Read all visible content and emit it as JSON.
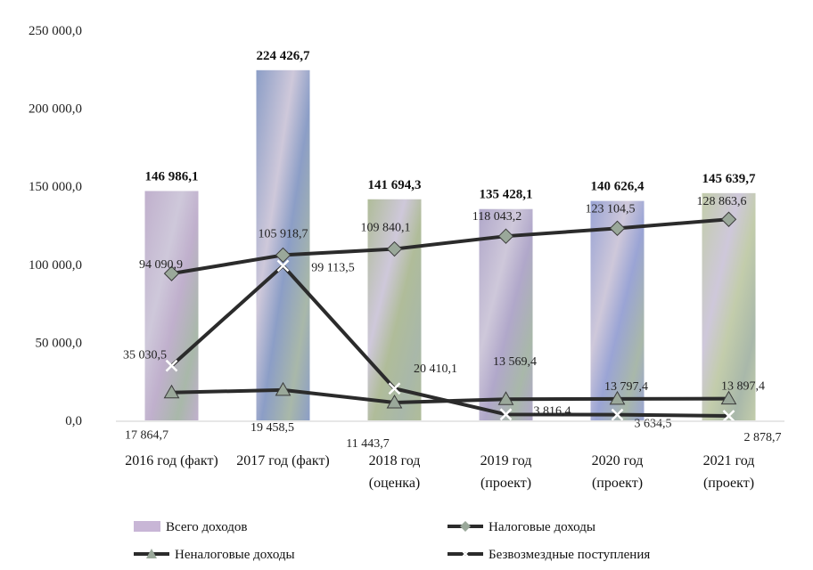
{
  "chart_data": {
    "type": "bar",
    "categories": [
      [
        "2016 год (факт)"
      ],
      [
        "2017 год (факт)"
      ],
      [
        "2018 год",
        "(оценка)"
      ],
      [
        "2019 год",
        "(проект)"
      ],
      [
        "2020 год",
        "(проект)"
      ],
      [
        "2021 год",
        "(проект)"
      ]
    ],
    "ylim": [
      0,
      250000
    ],
    "yticks": [
      0,
      50000,
      100000,
      150000,
      200000,
      250000
    ],
    "ytick_labels": [
      "0,0",
      "50 000,0",
      "100 000,0",
      "150 000,0",
      "200 000,0",
      "250 000,0"
    ],
    "legend_position": "bottom",
    "series": [
      {
        "name": "Всего доходов",
        "kind": "bar",
        "values": [
          146986.1,
          224426.7,
          141694.3,
          135428.1,
          140626.4,
          145639.7
        ],
        "labels": [
          "146 986,1",
          "224 426,7",
          "141 694,3",
          "135 428,1",
          "140 626,4",
          "145 639,7"
        ]
      },
      {
        "name": "Налоговые доходы",
        "kind": "line",
        "marker": "diamond",
        "values": [
          94090.9,
          105918.7,
          109840.1,
          118043.2,
          123104.5,
          128863.6
        ],
        "labels": [
          "94 090,9",
          "105 918,7",
          "109 840,1",
          "118 043,2",
          "123 104,5",
          "128 863,6"
        ]
      },
      {
        "name": "Неналоговые доходы",
        "kind": "line",
        "marker": "triangle",
        "values": [
          17864.7,
          19458.5,
          11443.7,
          13569.4,
          13797.4,
          13897.4
        ],
        "labels": [
          "17 864,7",
          "19 458,5",
          "11 443,7",
          "13 569,4",
          "13 797,4",
          "13 897,4"
        ]
      },
      {
        "name": "Безвозмездные поступления",
        "kind": "line",
        "marker": "cross",
        "values": [
          35030.5,
          99113.5,
          20410.1,
          3816.4,
          3634.5,
          2878.7
        ],
        "labels": [
          "35 030,5",
          "99 113,5",
          "20 410,1",
          "3 816,4",
          "3 634,5",
          "2 878,7"
        ]
      }
    ]
  },
  "colors": {
    "bars": [
      "#b9a7c7",
      "#7f93c0",
      "#a7b58e",
      "#a89ec4",
      "#8f9ad0",
      "#bcc7a2"
    ],
    "line": "#2b2b2b",
    "marker_fill": "#9aa89a"
  }
}
